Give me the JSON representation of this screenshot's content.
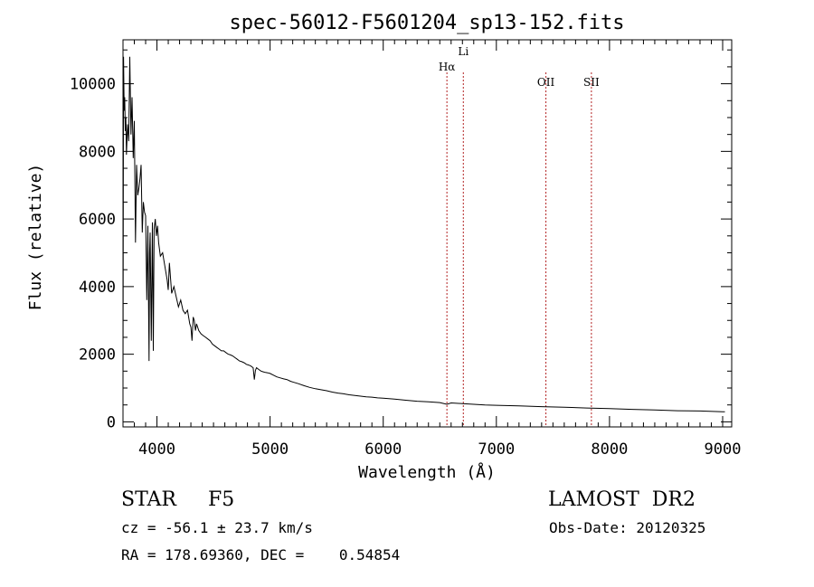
{
  "chart_data": {
    "type": "line",
    "title": "spec-56012-F5601204_sp13-152.fits",
    "xlabel": "Wavelength (Å)",
    "ylabel": "Flux (relative)",
    "xlim": [
      3700,
      9080
    ],
    "ylim": [
      -150,
      11300
    ],
    "x_ticks": [
      4000,
      5000,
      6000,
      7000,
      8000,
      9000
    ],
    "y_ticks": [
      0,
      2000,
      4000,
      6000,
      8000,
      10000
    ],
    "grid": false,
    "line_color": "#000000",
    "marker_color": "#b22222",
    "lines": [
      {
        "label": "Hα",
        "x": 6563
      },
      {
        "label": "Li",
        "x": 6708
      },
      {
        "label": "OII",
        "x": 7438
      },
      {
        "label": "SII",
        "x": 7840
      }
    ],
    "series": [
      {
        "x": [
          3700,
          3705,
          3710,
          3715,
          3720,
          3725,
          3730,
          3740,
          3750,
          3760,
          3770,
          3780,
          3790,
          3800,
          3810,
          3820,
          3830,
          3840,
          3850,
          3860,
          3870,
          3880,
          3890,
          3900,
          3910,
          3920,
          3930,
          3935,
          3940,
          3950,
          3960,
          3968,
          3975,
          3985,
          3995,
          4005,
          4015,
          4030,
          4050,
          4070,
          4090,
          4100,
          4110,
          4130,
          4150,
          4170,
          4190,
          4210,
          4230,
          4250,
          4270,
          4290,
          4300,
          4310,
          4320,
          4330,
          4340,
          4350,
          4370,
          4390,
          4410,
          4430,
          4450,
          4470,
          4490,
          4510,
          4530,
          4550,
          4570,
          4590,
          4610,
          4630,
          4650,
          4670,
          4690,
          4710,
          4730,
          4750,
          4770,
          4790,
          4810,
          4830,
          4850,
          4861,
          4870,
          4880,
          4900,
          4920,
          4940,
          4960,
          4980,
          5000,
          5030,
          5060,
          5090,
          5120,
          5150,
          5180,
          5200,
          5250,
          5300,
          5350,
          5400,
          5450,
          5500,
          5550,
          5600,
          5650,
          5700,
          5750,
          5800,
          5850,
          5900,
          5950,
          6000,
          6100,
          6200,
          6300,
          6400,
          6500,
          6563,
          6600,
          6700,
          6800,
          6900,
          7000,
          7200,
          7400,
          7600,
          7800,
          8000,
          8200,
          8400,
          8600,
          8800,
          9000,
          9020
        ],
        "y": [
          1200,
          10800,
          9200,
          9600,
          8600,
          9000,
          7900,
          8800,
          8300,
          10800,
          8500,
          9600,
          7800,
          8900,
          5300,
          7600,
          6700,
          6900,
          7200,
          7600,
          5600,
          6500,
          6200,
          6100,
          3600,
          5800,
          1800,
          5000,
          5600,
          2400,
          5900,
          2100,
          5700,
          6000,
          5500,
          5800,
          5300,
          4900,
          5000,
          4600,
          4200,
          3900,
          4700,
          3800,
          4000,
          3700,
          3400,
          3600,
          3300,
          3200,
          3300,
          2900,
          2800,
          2400,
          3100,
          3000,
          2700,
          2900,
          2700,
          2600,
          2550,
          2500,
          2450,
          2400,
          2300,
          2250,
          2200,
          2150,
          2100,
          2100,
          2050,
          2000,
          1980,
          1950,
          1900,
          1850,
          1800,
          1780,
          1750,
          1700,
          1680,
          1650,
          1600,
          1250,
          1520,
          1600,
          1550,
          1500,
          1480,
          1460,
          1450,
          1430,
          1380,
          1330,
          1300,
          1270,
          1250,
          1200,
          1180,
          1130,
          1070,
          1020,
          980,
          950,
          920,
          880,
          850,
          830,
          800,
          780,
          760,
          740,
          730,
          710,
          700,
          670,
          640,
          610,
          590,
          570,
          520,
          560,
          540,
          520,
          500,
          490,
          470,
          450,
          430,
          410,
          390,
          370,
          350,
          330,
          320,
          300,
          300
        ]
      }
    ]
  },
  "info": {
    "object": "STAR     F5",
    "survey": "LAMOST  DR2",
    "cz": "cz = -56.1 ± 23.7 km/s",
    "obs_date": "Obs-Date: 20120325",
    "coords": "RA = 178.69360, DEC =    0.54854"
  }
}
